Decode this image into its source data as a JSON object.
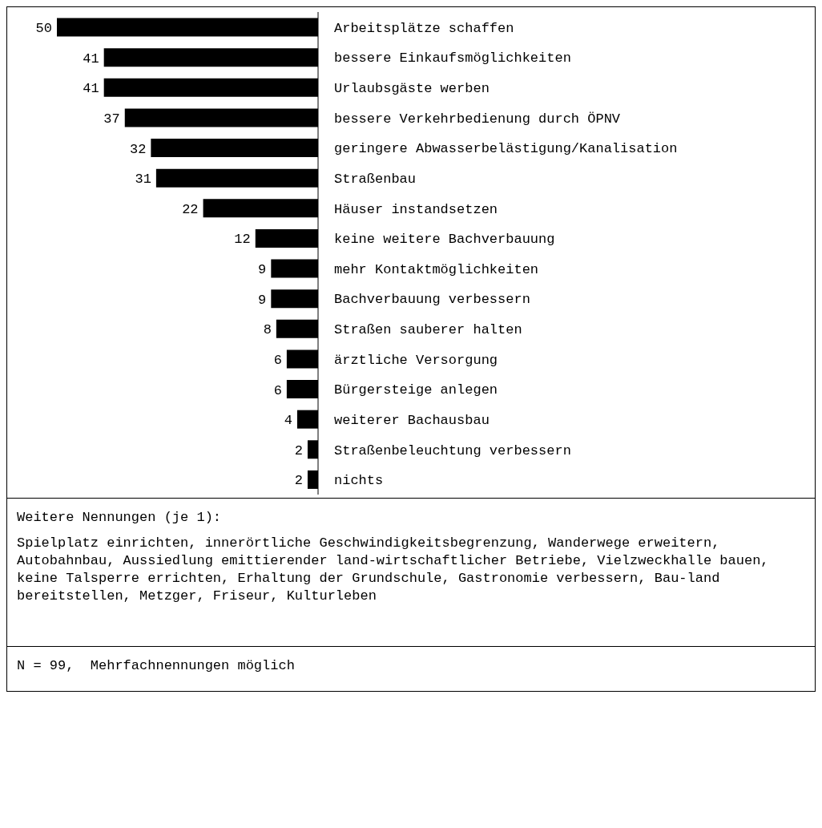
{
  "chart_data": {
    "type": "bar",
    "orientation": "horizontal",
    "data_labels": true,
    "color": "#000000",
    "categories": [
      "Arbeitsplätze schaffen",
      "bessere Einkaufsmöglichkeiten",
      "Urlaubsgäste werben",
      "bessere Verkehrbedienung durch ÖPNV",
      "geringere Abwasserbelästigung/Kanalisation",
      "Straßenbau",
      "Häuser instandsetzen",
      "keine weitere Bachverbauung",
      "mehr Kontaktmöglichkeiten",
      "Bachverbauung verbessern",
      "Straßen sauberer halten",
      "ärztliche Versorgung",
      "Bürgersteige anlegen",
      "weiterer Bachausbau",
      "Straßenbeleuchtung verbessern",
      "nichts"
    ],
    "values": [
      50,
      41,
      41,
      37,
      32,
      31,
      22,
      12,
      9,
      9,
      8,
      6,
      6,
      4,
      2,
      2
    ],
    "annotations": [
      "Weitere Nennungen (je 1):",
      "Spielplatz einrichten, innerörtliche Geschwindigkeitsbegrenzung, Wanderwege erweitern, Autobahnbau, Aussiedlung emittierender land-wirtschaftlicher Betriebe, Vielzweckhalle bauen, keine Talsperre errichten, Erhaltung der Grundschule, Gastronomie verbessern, Bau-land bereitstellen, Metzger, Friseur, Kulturleben",
      "N = 99,  Mehrfachnennungen möglich"
    ]
  }
}
